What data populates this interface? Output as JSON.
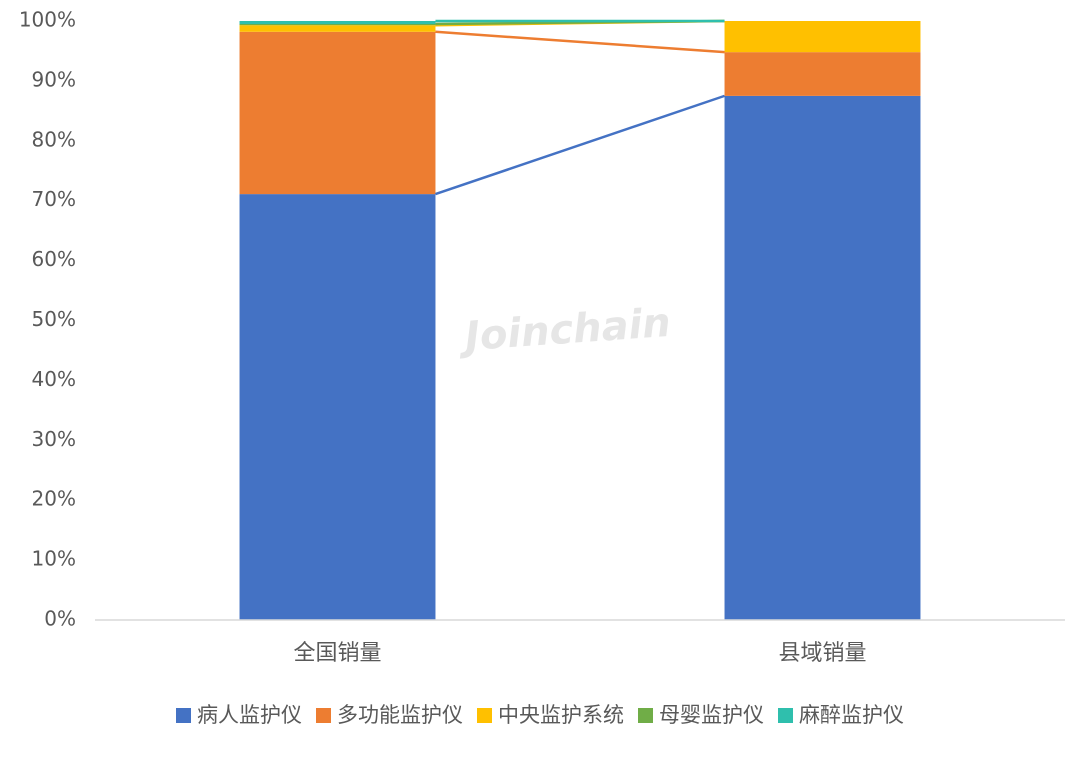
{
  "chart_data": {
    "type": "stacked_bar",
    "watermark": "Joinchain",
    "categories": [
      "全国销量",
      "县域销量"
    ],
    "series": [
      {
        "name": "病人监护仪",
        "color": "#4472c4",
        "values": [
          71.1,
          87.5
        ]
      },
      {
        "name": "多功能监护仪",
        "color": "#ed7d31",
        "values": [
          27.1,
          7.3
        ]
      },
      {
        "name": "中央监护系统",
        "color": "#ffc000",
        "values": [
          1.1,
          5.2
        ]
      },
      {
        "name": "母婴监护仪",
        "color": "#70ad47",
        "values": [
          0.2,
          0
        ]
      },
      {
        "name": "麻醉监护仪",
        "color": "#2fbfad",
        "values": [
          0.5,
          0
        ]
      }
    ],
    "ylim": [
      0,
      100
    ],
    "yticks": [
      {
        "value": 0,
        "label": "0%"
      },
      {
        "value": 10,
        "label": "10%"
      },
      {
        "value": 20,
        "label": "20%"
      },
      {
        "value": 30,
        "label": "30%"
      },
      {
        "value": 40,
        "label": "40%"
      },
      {
        "value": 50,
        "label": "50%"
      },
      {
        "value": 60,
        "label": "60%"
      },
      {
        "value": 70,
        "label": "70%"
      },
      {
        "value": 80,
        "label": "80%"
      },
      {
        "value": 90,
        "label": "90%"
      },
      {
        "value": 100,
        "label": "100%"
      }
    ],
    "series_lines": true,
    "legend": "bottom"
  }
}
